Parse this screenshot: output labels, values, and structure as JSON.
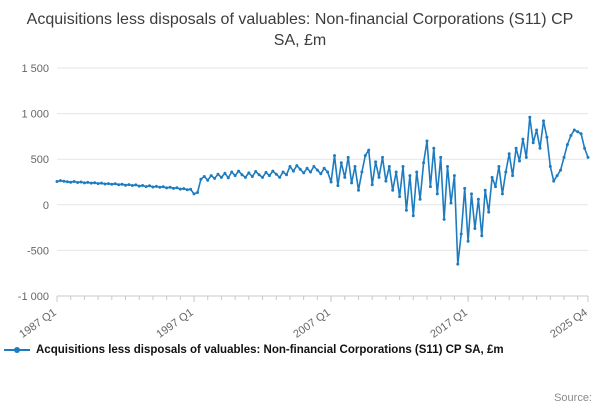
{
  "title": "Acquisitions less disposals of valuables: Non-financial Corporations (S11) CP SA, £m",
  "legend": {
    "label": "Acquisitions less disposals of valuables: Non-financial Corporations (S11) CP SA, £m"
  },
  "source_label": "Source:",
  "colors": {
    "line": "#1d7cc0",
    "grid": "#e6e6e6",
    "axis": "#c8c8c8",
    "tick_text": "#666666",
    "title_text": "#3c3c3c"
  },
  "chart_data": {
    "type": "line",
    "title": "Acquisitions less disposals of valuables: Non-financial Corporations (S11) CP SA, £m",
    "xlabel": "",
    "ylabel": "",
    "frequency": "quarterly",
    "start_period": "1987 Q1",
    "end_period": "2025 Q4",
    "ylim": [
      -1000,
      1500
    ],
    "grid": "horizontal",
    "legend_position": "bottom-left",
    "y_ticks": [
      {
        "value": 1500,
        "label": "1 500"
      },
      {
        "value": 1000,
        "label": "1 000"
      },
      {
        "value": 500,
        "label": "500"
      },
      {
        "value": 0,
        "label": "0"
      },
      {
        "value": -500,
        "label": "-500"
      },
      {
        "value": -1000,
        "label": "-1 000"
      }
    ],
    "x_tick_labels": [
      "1987 Q1",
      "1997 Q1",
      "2007 Q1",
      "2017 Q1",
      "2025 Q4"
    ],
    "x_tick_indices": [
      0,
      40,
      80,
      120,
      155
    ],
    "values": [
      255,
      265,
      258,
      252,
      248,
      255,
      245,
      250,
      240,
      246,
      238,
      242,
      232,
      238,
      228,
      233,
      225,
      230,
      220,
      226,
      215,
      222,
      212,
      218,
      205,
      212,
      200,
      208,
      195,
      202,
      192,
      198,
      185,
      192,
      180,
      188,
      172,
      178,
      165,
      170,
      120,
      135,
      280,
      310,
      270,
      320,
      290,
      335,
      300,
      345,
      295,
      360,
      320,
      370,
      330,
      300,
      350,
      310,
      365,
      330,
      300,
      355,
      320,
      370,
      335,
      300,
      360,
      330,
      420,
      370,
      430,
      390,
      350,
      400,
      360,
      420,
      380,
      340,
      400,
      360,
      250,
      540,
      210,
      460,
      300,
      520,
      240,
      420,
      160,
      360,
      540,
      600,
      220,
      470,
      300,
      520,
      260,
      420,
      160,
      360,
      90,
      420,
      -60,
      320,
      -120,
      360,
      60,
      460,
      700,
      200,
      620,
      120,
      520,
      -160,
      420,
      20,
      320,
      -650,
      -320,
      180,
      -400,
      120,
      -260,
      60,
      -340,
      160,
      -80,
      300,
      200,
      420,
      120,
      360,
      560,
      320,
      620,
      480,
      720,
      520,
      960,
      680,
      820,
      620,
      920,
      740,
      420,
      260,
      320,
      380,
      520,
      660,
      760,
      820,
      800,
      780,
      620,
      520
    ]
  }
}
